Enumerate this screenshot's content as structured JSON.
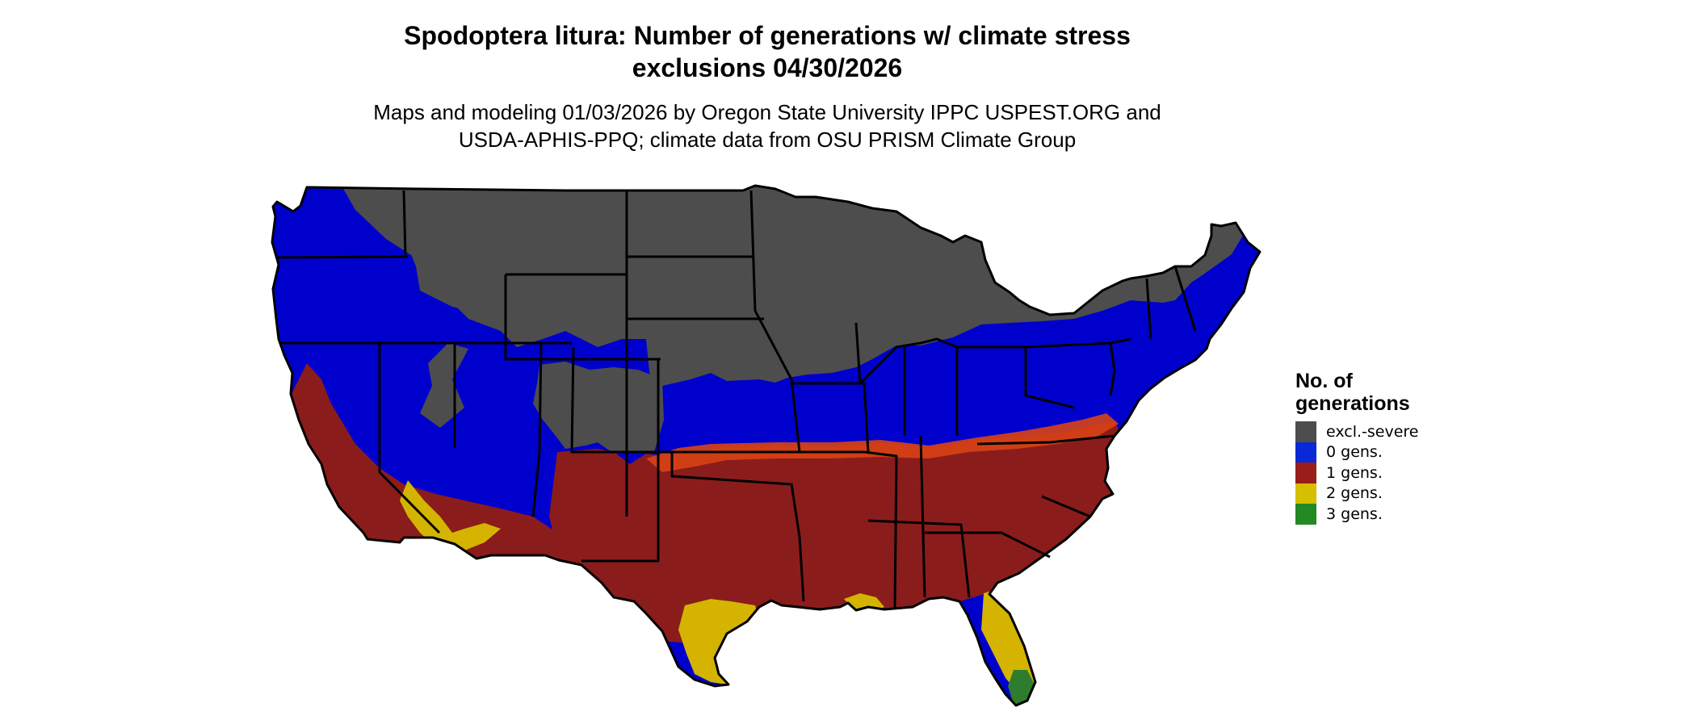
{
  "title_line1": "Spodoptera litura: Number of generations w/ climate stress",
  "title_line2": "exclusions 04/30/2026",
  "subtitle_line1": "Maps and modeling 01/03/2026 by Oregon State University IPPC USPEST.ORG and",
  "subtitle_line2": "USDA-APHIS-PPQ; climate data from OSU PRISM Climate Group",
  "legend": {
    "title_line1": "No. of",
    "title_line2": "generations",
    "items": [
      {
        "label": "excl.-severe",
        "color": "#4d4d4d"
      },
      {
        "label": "0 gens.",
        "color": "#0a28d6"
      },
      {
        "label": "1 gens.",
        "color": "#991d19"
      },
      {
        "label": "2 gens.",
        "color": "#d6be00"
      },
      {
        "label": "3 gens.",
        "color": "#238a23"
      }
    ]
  },
  "map": {
    "region": "contiguous-united-states",
    "colors": {
      "excluded": "#4d4d4d",
      "zero": "#0000cc",
      "one": "#8b1c1c",
      "transition": "#d84315",
      "two": "#d4b400",
      "three": "#2e7d2e",
      "border": "#000000"
    }
  }
}
